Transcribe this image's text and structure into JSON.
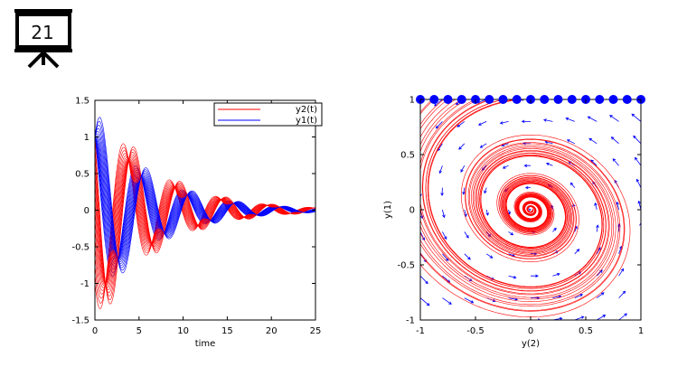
{
  "slide": {
    "number": "21"
  },
  "chart_data": [
    {
      "type": "line",
      "title": "",
      "xlabel": "time",
      "ylabel": "",
      "xlim": [
        0,
        25
      ],
      "ylim": [
        -1.5,
        1.5
      ],
      "xticks": [
        "0",
        "5",
        "10",
        "15",
        "20",
        "25"
      ],
      "yticks": [
        "1.5",
        "1",
        "0.5",
        "0",
        "-0.5",
        "-1",
        "-1.5"
      ],
      "grid": false,
      "legend_position": "top-right",
      "description": "Family of damped oscillations y1(t), y2(t) from many initial conditions",
      "family": {
        "count": 17,
        "initial_y2": [
          -1,
          -0.875,
          -0.75,
          -0.625,
          -0.5,
          -0.375,
          -0.25,
          -0.125,
          0,
          0.125,
          0.25,
          0.375,
          0.5,
          0.625,
          0.75,
          0.875,
          1
        ],
        "initial_y1": 1,
        "damping": 0.15,
        "omega": 1.2
      },
      "series": [
        {
          "name": "y2(t)",
          "color": "#ff0000"
        },
        {
          "name": "y1(t)",
          "color": "#0000ff"
        }
      ]
    },
    {
      "type": "line",
      "title": "",
      "xlabel": "y(2)",
      "ylabel": "y(1)",
      "xlim": [
        -1,
        1
      ],
      "ylim": [
        -1,
        1
      ],
      "xticks": [
        "-1",
        "-0.5",
        "0",
        "0.5",
        "1"
      ],
      "yticks": [
        "1",
        "0.5",
        "0",
        "-0.5",
        "-1"
      ],
      "grid": false,
      "description": "Phase portrait: spiral trajectories with vector field arrows; initial points along top edge",
      "initial_points": {
        "y1": 1,
        "y2": [
          -1,
          -0.875,
          -0.75,
          -0.625,
          -0.5,
          -0.375,
          -0.25,
          -0.125,
          0,
          0.125,
          0.25,
          0.375,
          0.5,
          0.625,
          0.75,
          0.875,
          1
        ]
      },
      "trajectory_color": "#ff0000",
      "marker_color": "#0000ff",
      "arrow_color": "#0000ff",
      "vector_field": {
        "grid_x": 11,
        "grid_y": 11
      }
    }
  ]
}
